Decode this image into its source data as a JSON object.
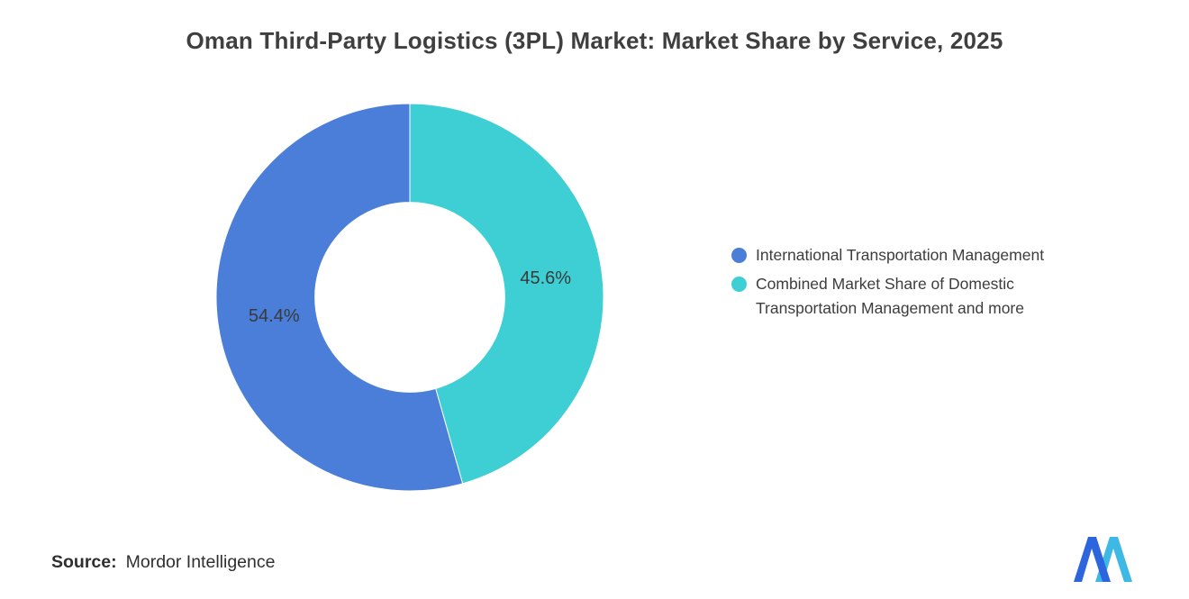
{
  "title": "Oman Third-Party Logistics (3PL) Market: Market Share by Service, 2025",
  "chart_data": {
    "type": "pie",
    "subtype": "donut",
    "title": "Oman Third-Party Logistics (3PL) Market: Market Share by Service, 2025",
    "slices": [
      {
        "label": "International Transportation Management",
        "value": 54.4,
        "display": "54.4%",
        "color": "#4a7ed8"
      },
      {
        "label": "Combined Market Share of Domestic Transportation Management and more",
        "value": 45.6,
        "display": "45.6%",
        "color": "#3dcfd3"
      }
    ],
    "direction": "counterclockwise-from-top",
    "donut_hole_ratio": 0.49,
    "label_color": "#3a3a3a",
    "legend_position": "right",
    "grid": false
  },
  "legend": {
    "items": [
      {
        "label": "International Transportation Management",
        "color": "#4a7ed8"
      },
      {
        "label": "Combined Market Share of Domestic Transportation Management and more",
        "color": "#3dcfd3"
      }
    ]
  },
  "source": {
    "label": "Source:",
    "value": "Mordor Intelligence"
  },
  "logo": {
    "alt": "mordor-intelligence-logo",
    "colors": {
      "left": "#2d65de",
      "right": "#3eb9e5"
    }
  }
}
